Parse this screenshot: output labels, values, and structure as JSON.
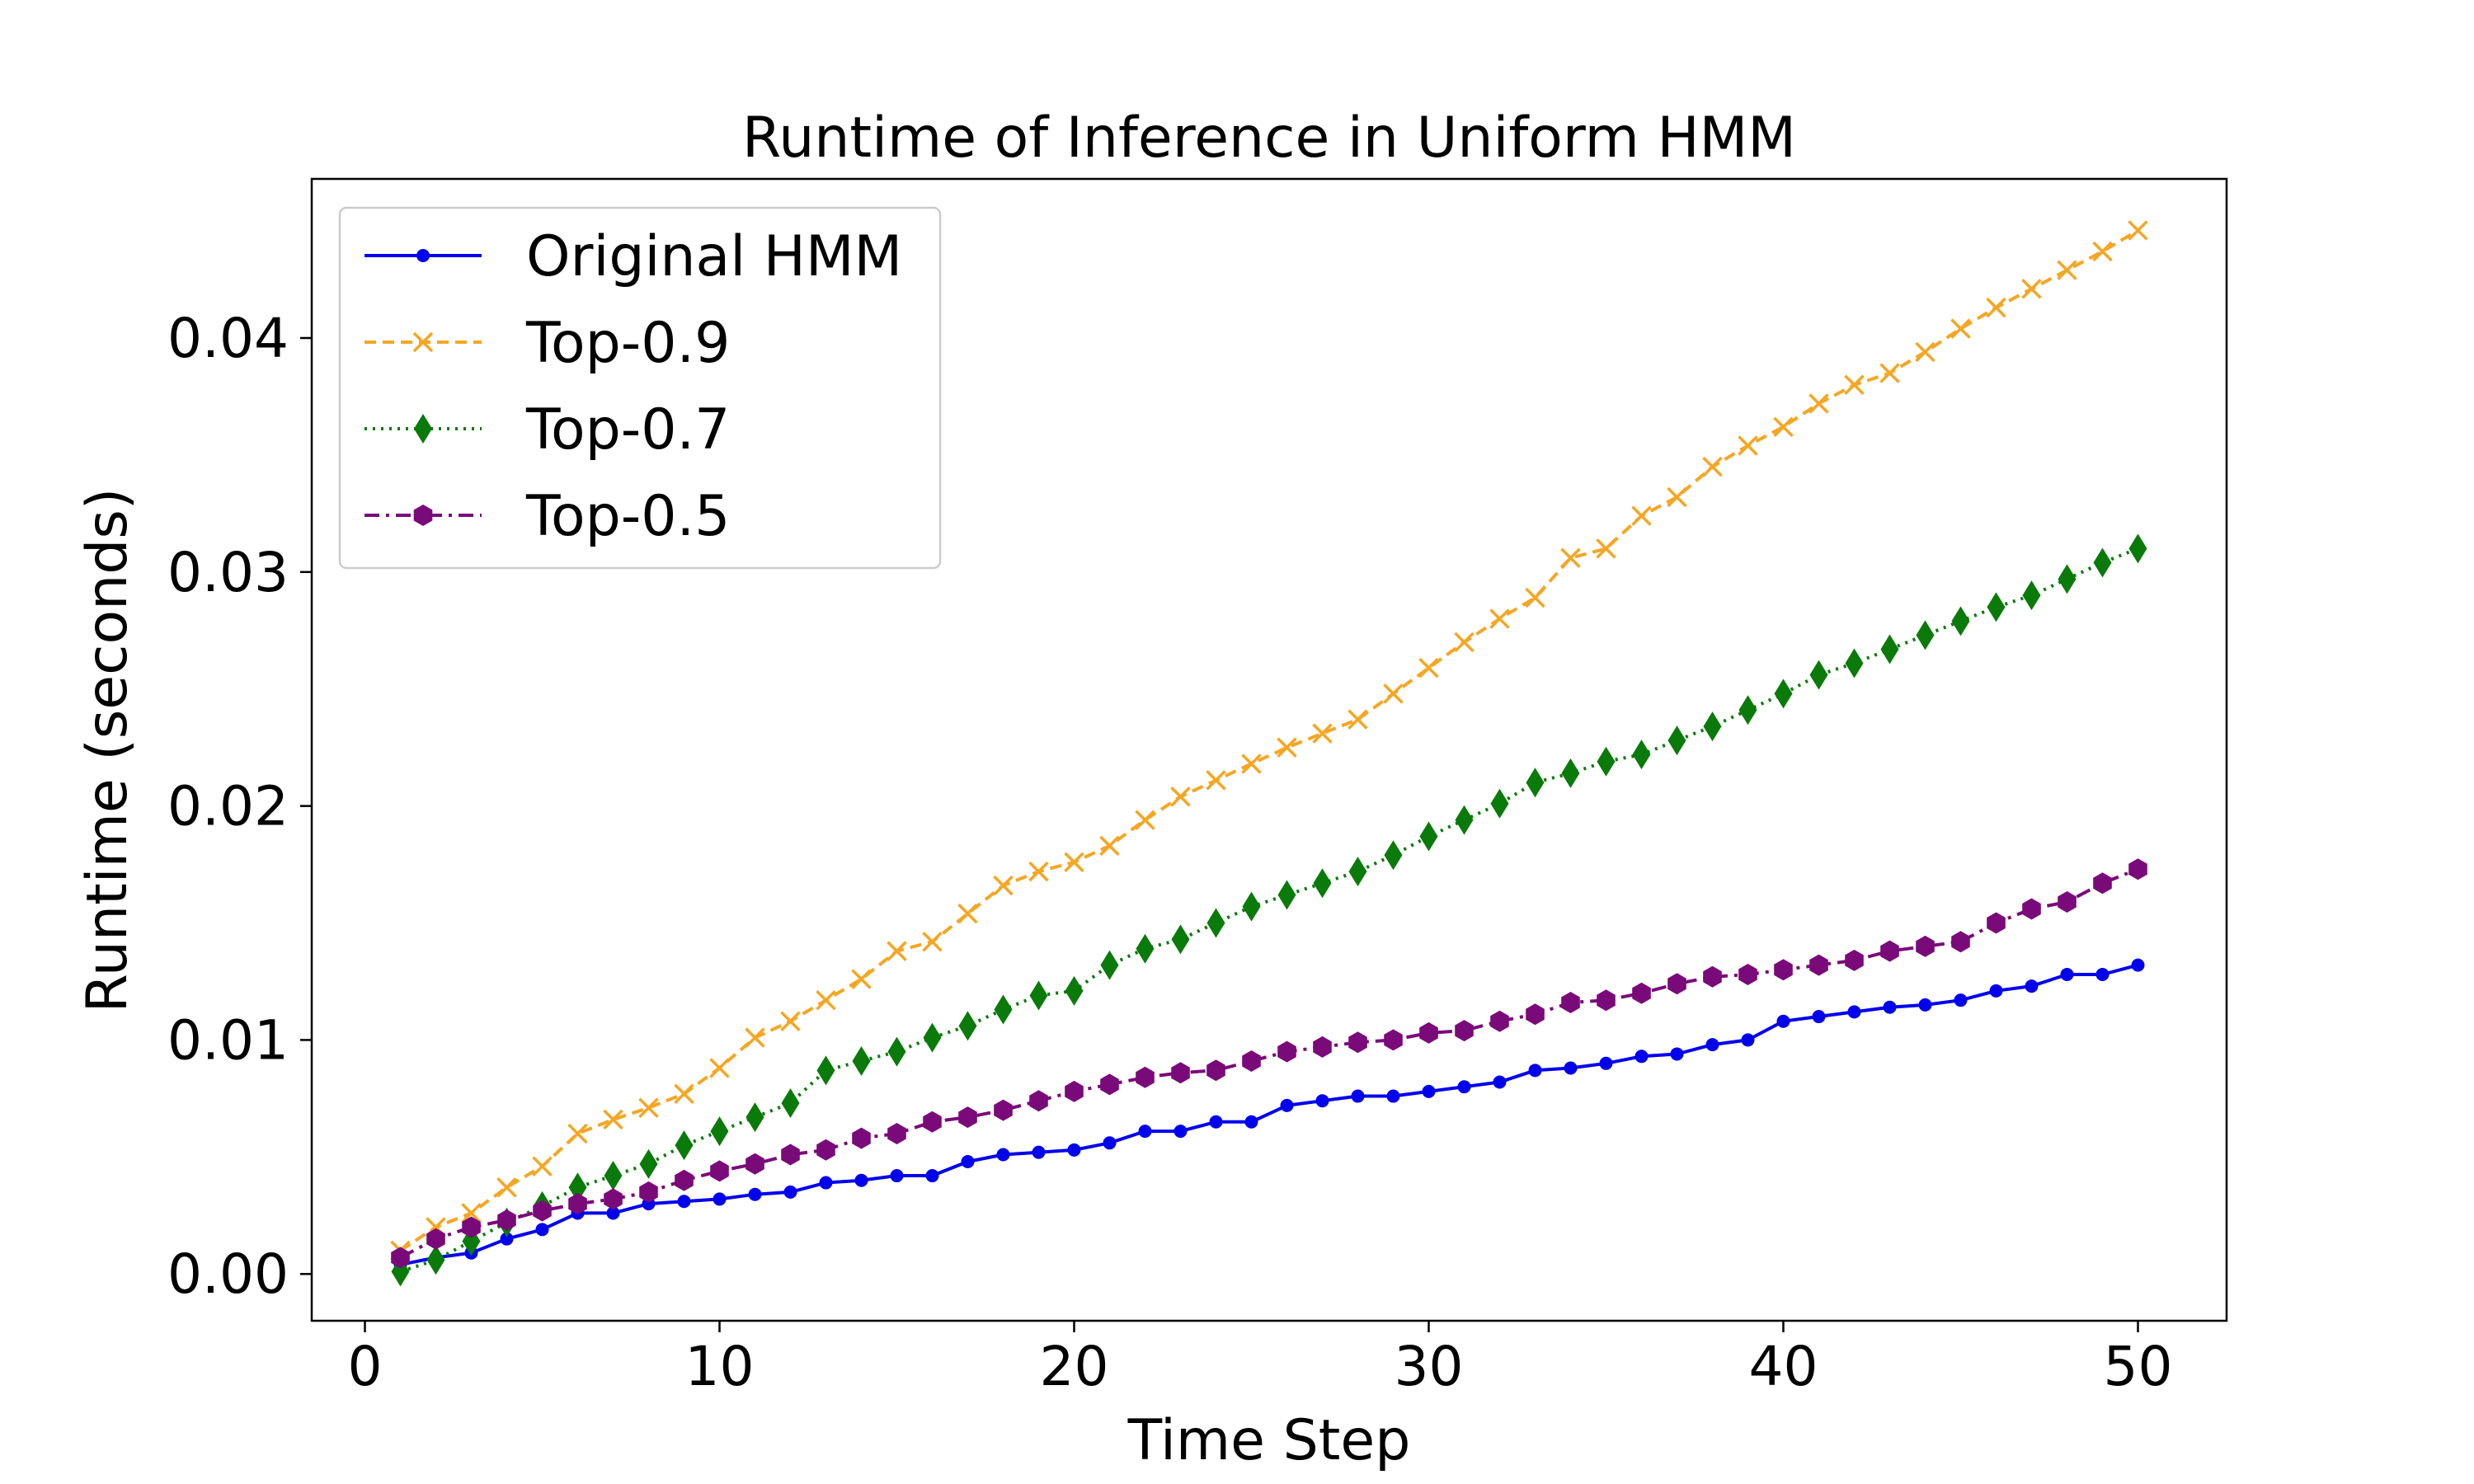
{
  "chart_data": {
    "type": "line",
    "title": "Runtime of Inference in Uniform HMM",
    "xlabel": "Time Step",
    "ylabel": "Runtime (seconds)",
    "xlim": [
      -1.5,
      52.5
    ],
    "ylim": [
      -0.002,
      0.0468
    ],
    "xticks": [
      0,
      10,
      20,
      30,
      40,
      50
    ],
    "xtick_labels": [
      "0",
      "10",
      "20",
      "30",
      "40",
      "50"
    ],
    "yticks": [
      0.0,
      0.01,
      0.02,
      0.03,
      0.04
    ],
    "ytick_labels": [
      "0.00",
      "0.01",
      "0.02",
      "0.03",
      "0.04"
    ],
    "grid": false,
    "legend_position": "top-left",
    "x": [
      1,
      2,
      3,
      4,
      5,
      6,
      7,
      8,
      9,
      10,
      11,
      12,
      13,
      14,
      15,
      16,
      17,
      18,
      19,
      20,
      21,
      22,
      23,
      24,
      25,
      26,
      27,
      28,
      29,
      30,
      31,
      32,
      33,
      34,
      35,
      36,
      37,
      38,
      39,
      40,
      41,
      42,
      43,
      44,
      45,
      46,
      47,
      48,
      49,
      50
    ],
    "series": [
      {
        "name": "Original HMM",
        "color": "#0000ee",
        "dash": "",
        "marker": "dot",
        "values": [
          0.0004,
          0.0007,
          0.0009,
          0.0015,
          0.0019,
          0.0026,
          0.0026,
          0.003,
          0.0031,
          0.0032,
          0.0034,
          0.0035,
          0.0039,
          0.004,
          0.0042,
          0.0042,
          0.0048,
          0.0051,
          0.0052,
          0.0053,
          0.0056,
          0.0061,
          0.0061,
          0.0065,
          0.0065,
          0.0072,
          0.0074,
          0.0076,
          0.0076,
          0.0078,
          0.008,
          0.0082,
          0.0087,
          0.0088,
          0.009,
          0.0093,
          0.0094,
          0.0098,
          0.01,
          0.0108,
          0.011,
          0.0112,
          0.0114,
          0.0115,
          0.0117,
          0.0121,
          0.0123,
          0.0128,
          0.0128,
          0.0132
        ]
      },
      {
        "name": "Top-0.9",
        "color": "#f5a623",
        "dash": "14,8",
        "marker": "x",
        "values": [
          0.001,
          0.002,
          0.0026,
          0.0037,
          0.0046,
          0.006,
          0.0066,
          0.0071,
          0.0077,
          0.0088,
          0.0101,
          0.0108,
          0.0117,
          0.0126,
          0.0138,
          0.0142,
          0.0154,
          0.0166,
          0.0172,
          0.0176,
          0.0183,
          0.0194,
          0.0204,
          0.0211,
          0.0218,
          0.0225,
          0.0231,
          0.0237,
          0.0248,
          0.0259,
          0.027,
          0.028,
          0.0289,
          0.0306,
          0.031,
          0.0324,
          0.0332,
          0.0345,
          0.0354,
          0.0362,
          0.0372,
          0.038,
          0.0385,
          0.0394,
          0.0404,
          0.0413,
          0.0421,
          0.0429,
          0.0437,
          0.0446
        ]
      },
      {
        "name": "Top-0.7",
        "color": "#0a7a0a",
        "dash": "3,7",
        "marker": "diamond",
        "values": [
          0.0001,
          0.0006,
          0.0014,
          0.0022,
          0.0029,
          0.0037,
          0.0042,
          0.0047,
          0.0055,
          0.0061,
          0.0067,
          0.0073,
          0.0087,
          0.0091,
          0.0095,
          0.0101,
          0.0106,
          0.0113,
          0.0119,
          0.0121,
          0.0132,
          0.0139,
          0.0143,
          0.015,
          0.0157,
          0.0162,
          0.0167,
          0.0172,
          0.0179,
          0.0187,
          0.0194,
          0.0201,
          0.021,
          0.0214,
          0.0219,
          0.0222,
          0.0228,
          0.0234,
          0.0241,
          0.0248,
          0.0256,
          0.0261,
          0.0267,
          0.0273,
          0.0279,
          0.0285,
          0.029,
          0.0297,
          0.0304,
          0.031
        ]
      },
      {
        "name": "Top-0.5",
        "color": "#7a0a7a",
        "dash": "18,8,4,8",
        "marker": "hexagon",
        "values": [
          0.0007,
          0.0015,
          0.002,
          0.0023,
          0.0027,
          0.003,
          0.0032,
          0.0035,
          0.004,
          0.0044,
          0.0047,
          0.0051,
          0.0053,
          0.0058,
          0.006,
          0.0065,
          0.0067,
          0.007,
          0.0074,
          0.0078,
          0.0081,
          0.0084,
          0.0086,
          0.0087,
          0.0091,
          0.0095,
          0.0097,
          0.0099,
          0.01,
          0.0103,
          0.0104,
          0.0108,
          0.0111,
          0.0116,
          0.0117,
          0.012,
          0.0124,
          0.0127,
          0.0128,
          0.013,
          0.0132,
          0.0134,
          0.0138,
          0.014,
          0.0142,
          0.015,
          0.0156,
          0.0159,
          0.0167,
          0.0173
        ]
      }
    ]
  }
}
